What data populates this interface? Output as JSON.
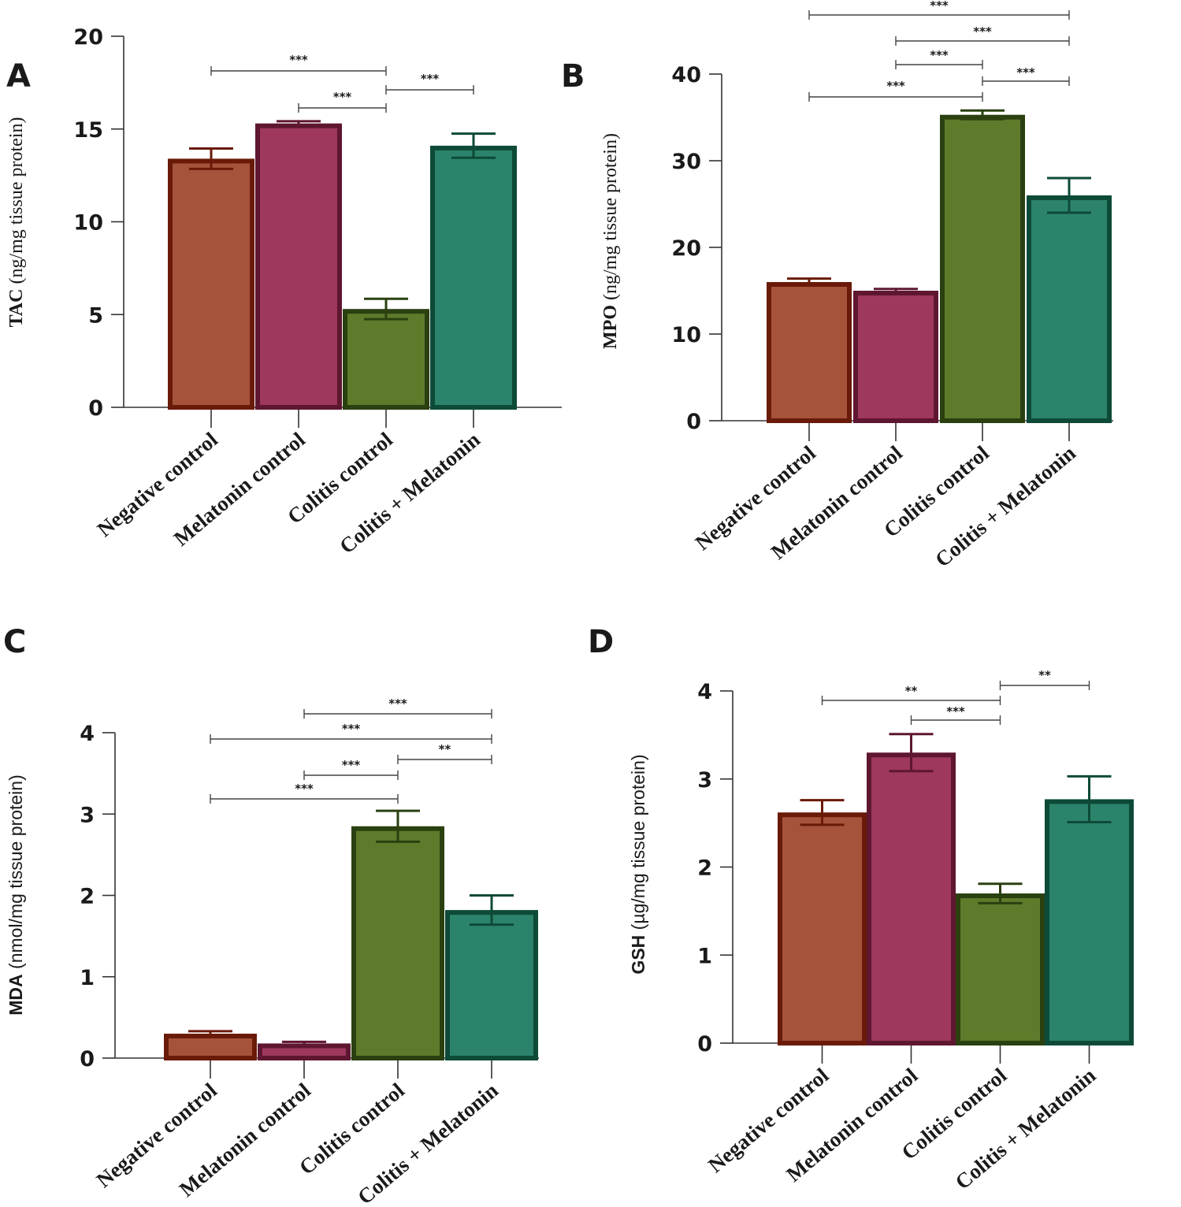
{
  "colors": {
    "axis": "#333333",
    "bars": [
      {
        "fill": "#a5533a",
        "stroke": "#6a1a08"
      },
      {
        "fill": "#9e385c",
        "stroke": "#5f1630"
      },
      {
        "fill": "#5e7b2b",
        "stroke": "#2a4010"
      },
      {
        "fill": "#2c836b",
        "stroke": "#0d4a38"
      }
    ]
  },
  "chart_data": [
    {
      "panel": "A",
      "type": "bar",
      "categories": [
        "Negative control",
        "Melatonin control",
        "Colitis control",
        "Colitis + Melatonin"
      ],
      "values": [
        13.4,
        15.3,
        5.3,
        14.1
      ],
      "errors": [
        0.55,
        0.12,
        0.55,
        0.65
      ],
      "ylabel_main": "TAC",
      "ylabel_unit": " (ng/mg tissue protein)",
      "ylim": [
        0,
        20
      ],
      "yticks": [
        0,
        5,
        10,
        15,
        20
      ],
      "significance": [
        {
          "from": 0,
          "to": 2,
          "label": "***"
        },
        {
          "from": 1,
          "to": 2,
          "label": "***"
        },
        {
          "from": 2,
          "to": 3,
          "label": "***"
        }
      ]
    },
    {
      "panel": "B",
      "type": "bar",
      "categories": [
        "Negative control",
        "Melatonin control",
        "Colitis control",
        "Colitis + Melatonin"
      ],
      "values": [
        16.0,
        15.0,
        35.3,
        26.0
      ],
      "errors": [
        0.4,
        0.2,
        0.5,
        2.0
      ],
      "ylabel_main": "MPO",
      "ylabel_unit": " (ng/mg tissue protein)",
      "ylim": [
        0,
        40
      ],
      "yticks": [
        0,
        10,
        20,
        30,
        40
      ],
      "significance": [
        {
          "from": 0,
          "to": 3,
          "label": "***"
        },
        {
          "from": 1,
          "to": 3,
          "label": "***"
        },
        {
          "from": 1,
          "to": 2,
          "label": "***"
        },
        {
          "from": 2,
          "to": 3,
          "label": "***"
        },
        {
          "from": 0,
          "to": 2,
          "label": "***"
        }
      ]
    },
    {
      "panel": "C",
      "type": "bar",
      "categories": [
        "Negative control",
        "Melatonin control",
        "Colitis control",
        "Colitis + Melatonin"
      ],
      "values": [
        0.3,
        0.18,
        2.85,
        1.82
      ],
      "errors": [
        0.03,
        0.02,
        0.19,
        0.18
      ],
      "ylabel_main": "MDA",
      "ylabel_unit": " (nmol/mg tissue protein)",
      "ylim": [
        0,
        4
      ],
      "yticks": [
        0,
        1,
        2,
        3,
        4
      ],
      "significance": [
        {
          "from": 1,
          "to": 3,
          "label": "***"
        },
        {
          "from": 0,
          "to": 3,
          "label": "***"
        },
        {
          "from": 1,
          "to": 2,
          "label": "***"
        },
        {
          "from": 2,
          "to": 3,
          "label": "**"
        },
        {
          "from": 0,
          "to": 2,
          "label": "***"
        }
      ]
    },
    {
      "panel": "D",
      "type": "bar",
      "categories": [
        "Negative control",
        "Melatonin control",
        "Colitis control",
        "Colitis + Melatonin"
      ],
      "values": [
        2.62,
        3.3,
        1.7,
        2.77
      ],
      "errors": [
        0.14,
        0.21,
        0.11,
        0.26
      ],
      "ylabel_main": "GSH",
      "ylabel_unit": " (µg/mg tissue protein)",
      "ylim": [
        0,
        4
      ],
      "yticks": [
        0,
        1,
        2,
        3,
        4
      ],
      "significance": [
        {
          "from": 0,
          "to": 2,
          "label": "**"
        },
        {
          "from": 1,
          "to": 2,
          "label": "***"
        },
        {
          "from": 2,
          "to": 3,
          "label": "**"
        }
      ]
    }
  ]
}
